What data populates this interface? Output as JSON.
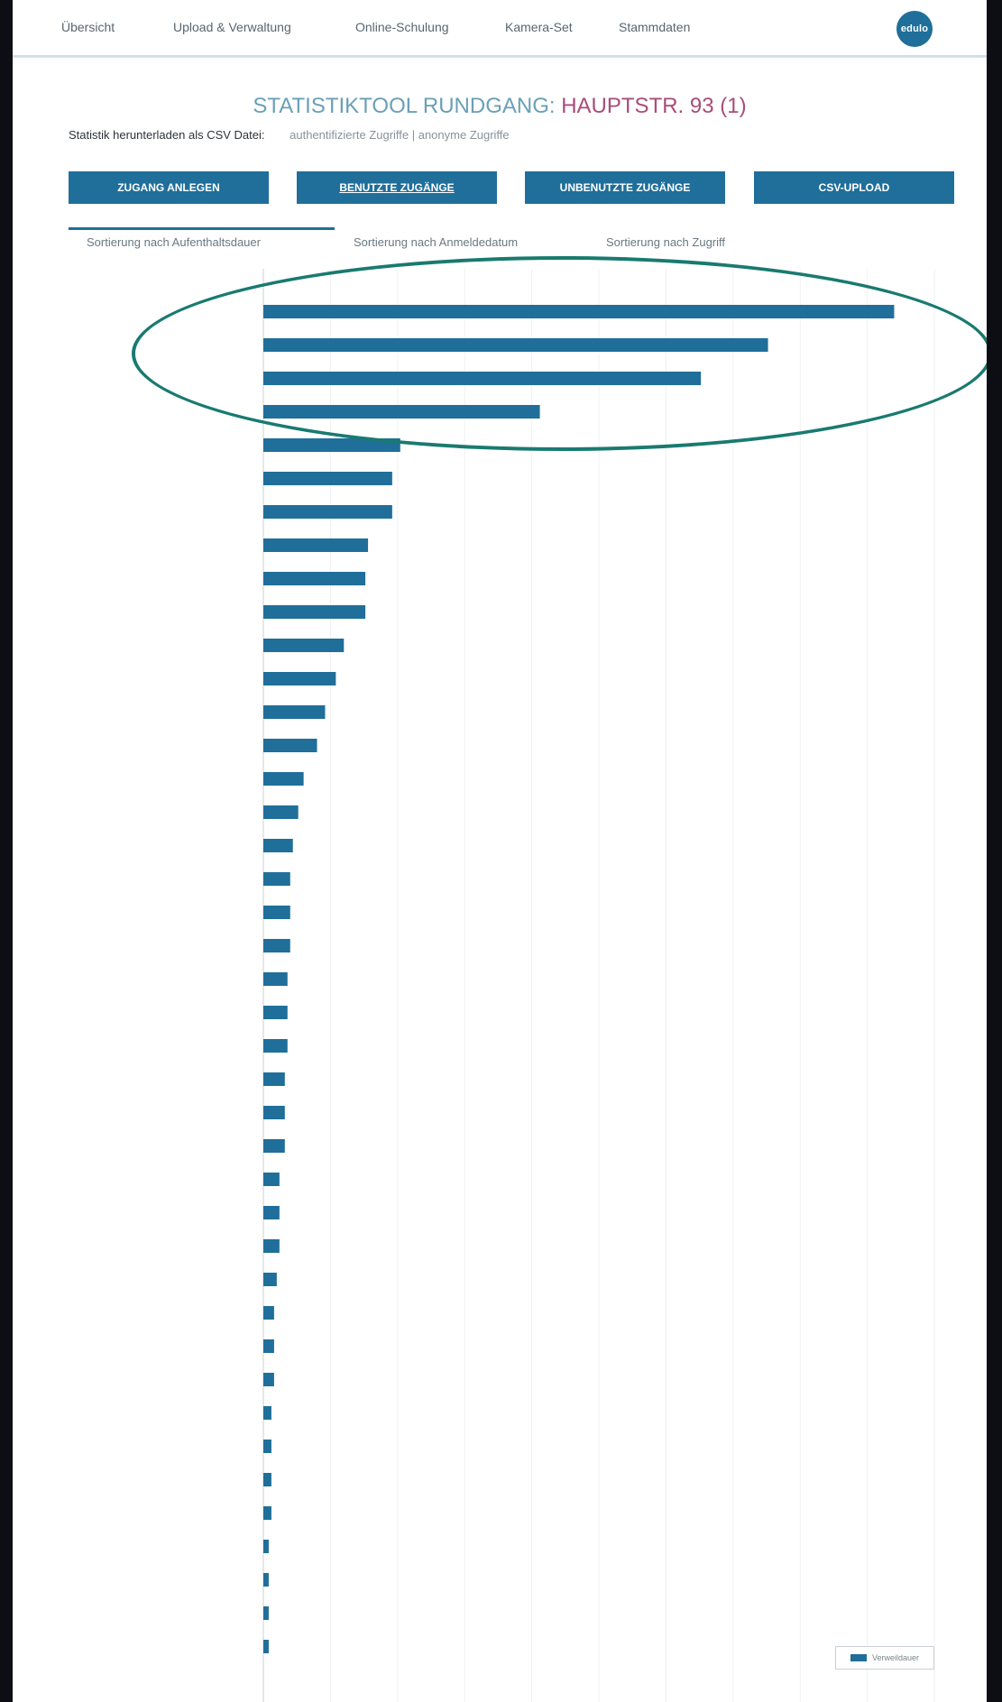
{
  "nav": {
    "items": [
      "Übersicht",
      "Upload & Verwaltung",
      "Online-Schulung",
      "Kamera-Set",
      "Stammdaten"
    ],
    "brand": "edulo"
  },
  "title": {
    "main": "STATISTIKTOOL RUNDGANG:",
    "accent": "HAUPTSTR. 93 (1)"
  },
  "csv": {
    "label": "Statistik herunterladen als CSV Datei:",
    "options": "authentifizierte Zugriffe | anonyme Zugriffe"
  },
  "buttons": [
    "ZUGANG ANLEGEN",
    "BENUTZTE ZUGÄNGE",
    "UNBENUTZTE ZUGÄNGE",
    "CSV-UPLOAD"
  ],
  "sort_tabs": [
    "Sortierung nach Aufenthaltsdauer",
    "Sortierung nach Anmeldedatum",
    "Sortierung nach Zugriff"
  ],
  "colors": {
    "bar": "#1f6f9a",
    "accent": "#a94d78",
    "highlight": "#197a70"
  },
  "chart_data": {
    "type": "bar",
    "orientation": "horizontal",
    "values": [
      235,
      188,
      163,
      103,
      51,
      48,
      48,
      39,
      38,
      38,
      30,
      27,
      23,
      20,
      15,
      13,
      11,
      10,
      10,
      10,
      9,
      9,
      9,
      8,
      8,
      8,
      6,
      6,
      6,
      5,
      4,
      4,
      4,
      3,
      3,
      3,
      3,
      2,
      2,
      2,
      2,
      0,
      0
    ],
    "xlim": [
      0,
      254
    ],
    "xticks": [
      "0",
      "25",
      "50",
      "75",
      "100",
      "125",
      "150",
      "175",
      "200",
      "225",
      "250"
    ],
    "series_name": "Verweildauer",
    "legend_position": "bottom-right",
    "grid": true
  }
}
